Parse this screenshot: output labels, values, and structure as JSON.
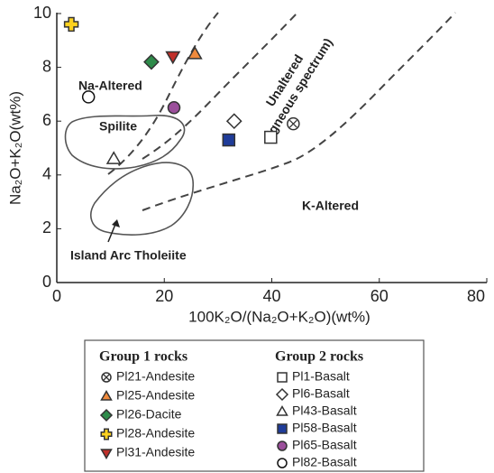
{
  "chart_data": {
    "type": "scatter",
    "xlabel": "100K₂O/(Na₂O+K₂O)(wt%)",
    "ylabel": "Na₂O+K₂O(wt%)",
    "xlim": [
      0,
      80
    ],
    "xticks": [
      0,
      20,
      40,
      60,
      80
    ],
    "ylim": [
      0,
      10
    ],
    "yticks": [
      0,
      2,
      4,
      6,
      8,
      10
    ],
    "annotations": [
      "Na-Altered",
      "Spilite",
      "Unaltered",
      "(Igneous spectrum)",
      "K-Altered",
      "Island Arc Tholeiite"
    ],
    "groups": [
      {
        "title": "Group 1 rocks",
        "series": [
          {
            "name": "Pl21-Andesite",
            "marker": "circle-x",
            "color": "#333333",
            "filled": false,
            "x": [
              44
            ],
            "values": [
              5.9
            ]
          },
          {
            "name": "Pl25-Andesite",
            "marker": "triangle",
            "color": "#f08a3c",
            "filled": true,
            "x": [
              25.7
            ],
            "values": [
              8.5
            ]
          },
          {
            "name": "Pl26-Dacite",
            "marker": "diamond",
            "color": "#2e8b4a",
            "filled": true,
            "x": [
              17.6
            ],
            "values": [
              8.2
            ]
          },
          {
            "name": "Pl28-Andesite",
            "marker": "plus",
            "color": "#ffd21f",
            "filled": true,
            "x": [
              2.7
            ],
            "values": [
              9.6
            ]
          },
          {
            "name": "Pl31-Andesite",
            "marker": "triangle-down",
            "color": "#c0302a",
            "filled": true,
            "x": [
              21.6
            ],
            "values": [
              8.4
            ]
          }
        ]
      },
      {
        "title": "Group 2 rocks",
        "series": [
          {
            "name": "Pl1-Basalt",
            "marker": "square",
            "color": "#333333",
            "filled": false,
            "x": [
              39.8
            ],
            "values": [
              5.4
            ]
          },
          {
            "name": "Pl6-Basalt",
            "marker": "diamond",
            "color": "#333333",
            "filled": false,
            "x": [
              33
            ],
            "values": [
              6.0
            ]
          },
          {
            "name": "Pl43-Basalt",
            "marker": "triangle",
            "color": "#333333",
            "filled": false,
            "x": [
              10.6
            ],
            "values": [
              4.6
            ]
          },
          {
            "name": "Pl58-Basalt",
            "marker": "square",
            "color": "#1f3c99",
            "filled": true,
            "x": [
              32
            ],
            "values": [
              5.3
            ]
          },
          {
            "name": "Pl65-Basalt",
            "marker": "circle",
            "color": "#9b4f9b",
            "filled": true,
            "x": [
              21.8
            ],
            "values": [
              6.5
            ]
          },
          {
            "name": "Pl82-Basalt",
            "marker": "circle",
            "color": "#111111",
            "filled": false,
            "x": [
              5.9
            ],
            "values": [
              6.9
            ]
          }
        ]
      }
    ]
  }
}
